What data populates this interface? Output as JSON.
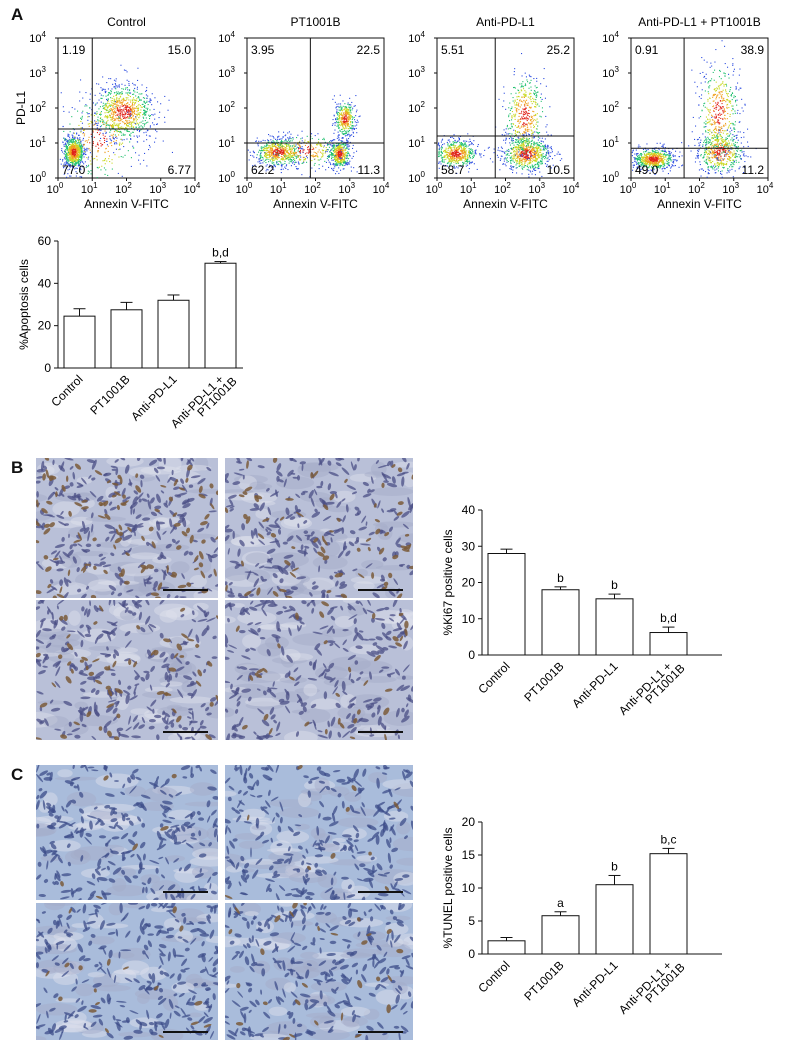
{
  "panels": {
    "a": "A",
    "b": "B",
    "c": "C"
  },
  "flow": {
    "xlabel": "Annexin V-FITC",
    "ylabel": "PD-L1",
    "ticks": [
      "10",
      "10",
      "10",
      "10",
      "10"
    ],
    "tick_exp": [
      "0",
      "1",
      "2",
      "3",
      "4"
    ],
    "plots": [
      {
        "title": "Control",
        "ul": "1.19",
        "ur": "15.0",
        "ll": "77.0",
        "lr": "6.77",
        "gate_x": 1.0,
        "gate_y": 1.4
      },
      {
        "title": "PT1001B",
        "ul": "3.95",
        "ur": "22.5",
        "ll": "62.2",
        "lr": "11.3",
        "gate_x": 1.85,
        "gate_y": 1.0
      },
      {
        "title": "Anti-PD-L1",
        "ul": "5.51",
        "ur": "25.2",
        "ll": "58.7",
        "lr": "10.5",
        "gate_x": 1.7,
        "gate_y": 1.2
      },
      {
        "title": "Anti-PD-L1 + PT1001B",
        "ul": "0.91",
        "ur": "38.9",
        "ll": "49.0",
        "lr": "11.2",
        "gate_x": 1.55,
        "gate_y": 0.85
      }
    ]
  },
  "chart_data": [
    {
      "type": "bar",
      "ylabel": "%Apoptosis cells",
      "categories": [
        "Control",
        "PT1001B",
        "Anti-PD-L1",
        "Anti-PD-L1 + PT1001B"
      ],
      "values": [
        24.5,
        27.5,
        32,
        49.5
      ],
      "errors": [
        3.5,
        3.5,
        2.5,
        0.8
      ],
      "annotations": [
        "",
        "",
        "",
        "b,d"
      ],
      "ylim": [
        0,
        60
      ],
      "yticks": [
        0,
        20,
        40,
        60
      ]
    },
    {
      "type": "bar",
      "ylabel": "%Ki67 positive cells",
      "categories": [
        "Control",
        "PT1001B",
        "Anti-PD-L1",
        "Anti-PD-L1 + PT1001B"
      ],
      "values": [
        28,
        18,
        15.5,
        6.2
      ],
      "errors": [
        1.2,
        0.8,
        1.3,
        1.5
      ],
      "annotations": [
        "",
        "b",
        "b",
        "b,d"
      ],
      "ylim": [
        0,
        40
      ],
      "yticks": [
        0,
        10,
        20,
        30,
        40
      ]
    },
    {
      "type": "bar",
      "ylabel": "%TUNEL positive cells",
      "categories": [
        "Control",
        "PT1001B",
        "Anti-PD-L1",
        "Anti-PD-L1 + PT1001B"
      ],
      "values": [
        2,
        5.8,
        10.5,
        15.2
      ],
      "errors": [
        0.5,
        0.6,
        1.4,
        0.8
      ],
      "annotations": [
        "",
        "a",
        "b",
        "b,c"
      ],
      "ylim": [
        0,
        20
      ],
      "yticks": [
        0,
        5,
        10,
        15,
        20
      ]
    }
  ],
  "colors": {
    "ki67_bg": "#b9c0d8",
    "tunel_bg": "#a9bcdb",
    "brown": "#7a5a3a",
    "scale": "#111111"
  }
}
